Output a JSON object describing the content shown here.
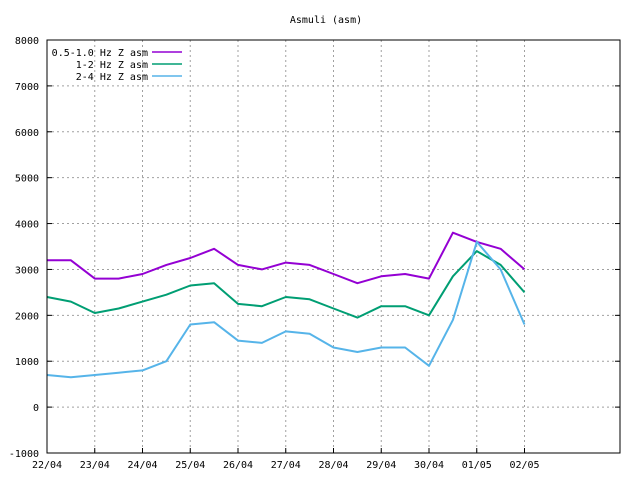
{
  "chart_data": {
    "type": "line",
    "title": "Asmuli (asm)",
    "xlabel": "",
    "ylabel": "",
    "grid": true,
    "legend_position": "top-left",
    "ylim": [
      -1000,
      8000
    ],
    "yticks": [
      -1000,
      0,
      1000,
      2000,
      3000,
      4000,
      5000,
      6000,
      7000,
      8000
    ],
    "xlim": [
      "2022-04-22T00:00",
      "2022-05-04T00:00"
    ],
    "xticks": [
      {
        "date": "2022-04-22T00:00",
        "label": "22/04"
      },
      {
        "date": "2022-04-23T00:00",
        "label": "23/04"
      },
      {
        "date": "2022-04-24T00:00",
        "label": "24/04"
      },
      {
        "date": "2022-04-25T00:00",
        "label": "25/04"
      },
      {
        "date": "2022-04-26T00:00",
        "label": "26/04"
      },
      {
        "date": "2022-04-27T00:00",
        "label": "27/04"
      },
      {
        "date": "2022-04-28T00:00",
        "label": "28/04"
      },
      {
        "date": "2022-04-29T00:00",
        "label": "29/04"
      },
      {
        "date": "2022-04-30T00:00",
        "label": "30/04"
      },
      {
        "date": "2022-05-01T00:00",
        "label": "01/05"
      },
      {
        "date": "2022-05-02T00:00",
        "label": "02/05"
      }
    ],
    "series": [
      {
        "name": "0.5-1.0 Hz Z asm",
        "color": "#9400d3",
        "x": [
          "2022-04-22T00:00",
          "2022-04-22T12:00",
          "2022-04-23T00:00",
          "2022-04-23T12:00",
          "2022-04-24T00:00",
          "2022-04-24T12:00",
          "2022-04-25T00:00",
          "2022-04-25T12:00",
          "2022-04-26T00:00",
          "2022-04-26T12:00",
          "2022-04-27T00:00",
          "2022-04-27T12:00",
          "2022-04-28T00:00",
          "2022-04-28T12:00",
          "2022-04-29T00:00",
          "2022-04-29T12:00",
          "2022-04-30T00:00",
          "2022-04-30T12:00",
          "2022-05-01T00:00",
          "2022-05-01T12:00",
          "2022-05-02T00:00"
        ],
        "y": [
          3200,
          3200,
          2800,
          2800,
          2900,
          3100,
          3250,
          3450,
          3100,
          3000,
          3150,
          3100,
          2900,
          2700,
          2850,
          2900,
          2800,
          3800,
          3600,
          3450,
          3000
        ]
      },
      {
        "name": "1-2 Hz Z asm",
        "color": "#009e73",
        "x": [
          "2022-04-22T00:00",
          "2022-04-22T12:00",
          "2022-04-23T00:00",
          "2022-04-23T12:00",
          "2022-04-24T00:00",
          "2022-04-24T12:00",
          "2022-04-25T00:00",
          "2022-04-25T12:00",
          "2022-04-26T00:00",
          "2022-04-26T12:00",
          "2022-04-27T00:00",
          "2022-04-27T12:00",
          "2022-04-28T00:00",
          "2022-04-28T12:00",
          "2022-04-29T00:00",
          "2022-04-29T12:00",
          "2022-04-30T00:00",
          "2022-04-30T12:00",
          "2022-05-01T00:00",
          "2022-05-01T12:00",
          "2022-05-02T00:00"
        ],
        "y": [
          2400,
          2300,
          2050,
          2150,
          2300,
          2450,
          2650,
          2700,
          2250,
          2200,
          2400,
          2350,
          2150,
          1950,
          2200,
          2200,
          2000,
          2850,
          3400,
          3100,
          2500
        ]
      },
      {
        "name": "2-4 Hz Z asm",
        "color": "#56b4e9",
        "x": [
          "2022-04-22T00:00",
          "2022-04-22T12:00",
          "2022-04-23T00:00",
          "2022-04-23T12:00",
          "2022-04-24T00:00",
          "2022-04-24T12:00",
          "2022-04-25T00:00",
          "2022-04-25T12:00",
          "2022-04-26T00:00",
          "2022-04-26T12:00",
          "2022-04-27T00:00",
          "2022-04-27T12:00",
          "2022-04-28T00:00",
          "2022-04-28T12:00",
          "2022-04-29T00:00",
          "2022-04-29T12:00",
          "2022-04-30T00:00",
          "2022-04-30T12:00",
          "2022-05-01T00:00",
          "2022-05-01T12:00",
          "2022-05-02T00:00"
        ],
        "y": [
          700,
          650,
          700,
          750,
          800,
          1000,
          1800,
          1850,
          1450,
          1400,
          1650,
          1600,
          1300,
          1200,
          1300,
          1300,
          900,
          1900,
          3600,
          3000,
          1800
        ]
      }
    ]
  }
}
